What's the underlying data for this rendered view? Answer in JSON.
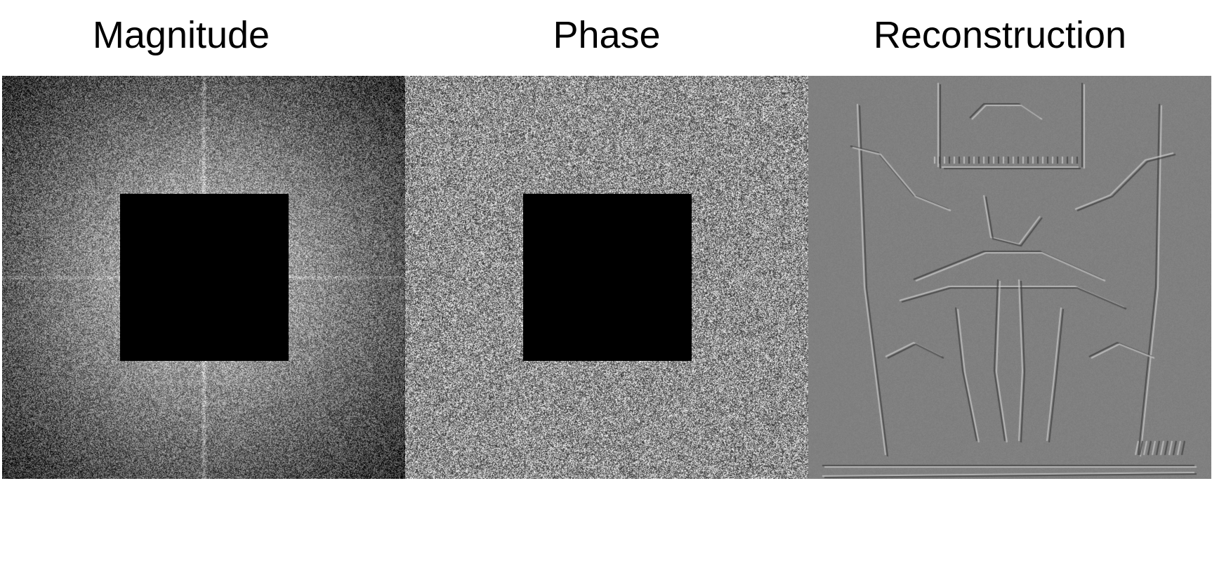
{
  "panels": [
    {
      "id": "magnitude",
      "title": "Magnitude",
      "texture": "fourier-magnitude-spectrum",
      "has_mask": true
    },
    {
      "id": "phase",
      "title": "Phase",
      "texture": "fourier-phase-noise",
      "has_mask": true
    },
    {
      "id": "reconstruction",
      "title": "Reconstruction",
      "texture": "high-pass-edge-image",
      "has_mask": false
    }
  ],
  "colors": {
    "background": "#ffffff",
    "mask": "#000000",
    "reconstruction_gray": "#808080"
  }
}
